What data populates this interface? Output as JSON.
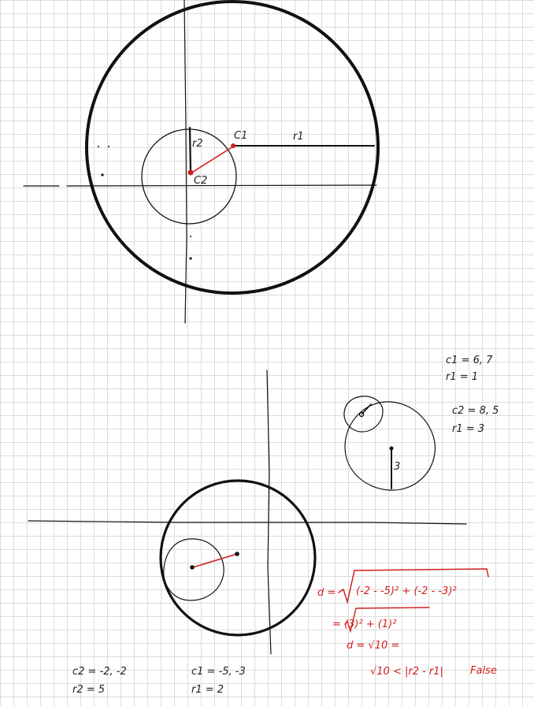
{
  "top_sketch": {
    "label_c1": "C1",
    "label_r1": "r1",
    "label_r2": "r2",
    "label_c2": "C2"
  },
  "right_sketch": {
    "note_c1": "c1 = 6, 7",
    "note_r1": "r1 = 1",
    "note_c2": "c2 = 8, 5",
    "note_r2": "r1 = 3",
    "radius_label": "3"
  },
  "bottom_sketch": {
    "left_note_c": "c2 = -2, -2",
    "left_note_r": "r2 = 5",
    "mid_note_c": "c1 = -5, -3",
    "mid_note_r": "r1 = 2"
  },
  "work": {
    "line1_lhs": "d =",
    "line1_expr": "(-2 - -5)² + (-2 - -3)²",
    "line2_expr": "=  (3)² + (1)²",
    "line3": "d =  √10  =",
    "line4": "√10 < |r2 - r1|",
    "line4_result": "False"
  },
  "colors": {
    "ink": "#111111",
    "red": "#d0201e",
    "grid": "#dcdcdc"
  }
}
